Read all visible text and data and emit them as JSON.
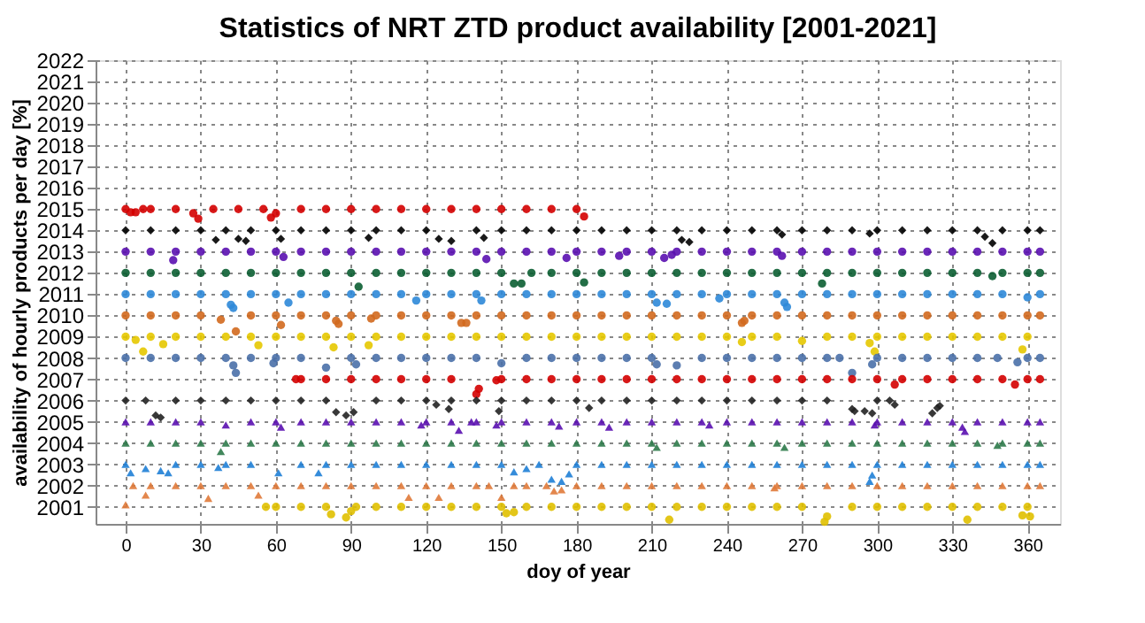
{
  "chart_data": {
    "type": "scatter",
    "title": "Statistics of NRT ZTD product availability [2001-2021]",
    "xlabel": "doy of year",
    "ylabel": "availability of hourly products per day [%]",
    "xlim": [
      -12,
      373
    ],
    "ylim": [
      2000.2,
      2022
    ],
    "xticks": [
      0,
      30,
      60,
      90,
      120,
      150,
      180,
      210,
      240,
      270,
      300,
      330,
      360
    ],
    "yticks": [
      2001,
      2002,
      2003,
      2004,
      2005,
      2006,
      2007,
      2008,
      2009,
      2010,
      2011,
      2012,
      2013,
      2014,
      2015,
      2016,
      2017,
      2018,
      2019,
      2020,
      2021,
      2022
    ],
    "grid": true,
    "series": [
      {
        "color": "#d40000",
        "marker": "circle",
        "x": [
          0,
          2,
          4,
          7,
          10,
          20,
          27,
          29,
          35,
          45,
          55,
          58,
          60,
          70,
          80,
          90,
          100,
          110,
          120,
          130,
          140,
          150,
          160,
          170,
          180,
          183
        ],
        "values": [
          2015,
          2014.85,
          2014.85,
          2015,
          2015,
          2015,
          2014.8,
          2014.55,
          2015,
          2015,
          2015,
          2014.6,
          2014.8,
          2015,
          2015,
          2015,
          2015,
          2015,
          2015,
          2015,
          2015,
          2015,
          2015,
          2015,
          2015,
          2014.65
        ]
      },
      {
        "color": "#000000",
        "marker": "diamond",
        "x": [
          0,
          10,
          20,
          30,
          36,
          40,
          45,
          48,
          50,
          60,
          62,
          70,
          80,
          90,
          97,
          100,
          110,
          120,
          125,
          130,
          140,
          143,
          150,
          160,
          170,
          180,
          190,
          200,
          210,
          220,
          222,
          225,
          230,
          240,
          250,
          260,
          262,
          270,
          280,
          290,
          297,
          300,
          310,
          320,
          330,
          340,
          343,
          346,
          350,
          360,
          365
        ],
        "values": [
          2014,
          2014,
          2014,
          2014,
          2013.55,
          2014,
          2013.6,
          2013.5,
          2014,
          2014,
          2013.6,
          2014,
          2014,
          2014,
          2013.65,
          2014,
          2014,
          2014,
          2013.6,
          2013.5,
          2014,
          2013.65,
          2014,
          2014,
          2014,
          2014,
          2014,
          2014,
          2014,
          2014,
          2013.55,
          2013.45,
          2014,
          2014,
          2014,
          2014,
          2013.8,
          2014,
          2014,
          2014,
          2013.85,
          2014,
          2014,
          2014,
          2014,
          2014,
          2013.7,
          2013.4,
          2014,
          2014,
          2014
        ]
      },
      {
        "color": "#5a0fb0",
        "marker": "circle",
        "x": [
          0,
          10,
          19,
          20,
          30,
          40,
          50,
          60,
          63,
          70,
          80,
          90,
          100,
          110,
          120,
          130,
          140,
          144,
          150,
          160,
          170,
          176,
          180,
          190,
          197,
          200,
          210,
          215,
          218,
          220,
          230,
          240,
          250,
          260,
          262,
          270,
          280,
          290,
          300,
          310,
          320,
          330,
          340,
          350,
          360,
          365
        ],
        "values": [
          2013,
          2013,
          2012.6,
          2013,
          2013,
          2013,
          2013,
          2013,
          2012.75,
          2013,
          2013,
          2013,
          2013,
          2013,
          2013,
          2013,
          2013,
          2012.65,
          2013,
          2013,
          2013,
          2012.7,
          2013,
          2013,
          2012.8,
          2013,
          2013,
          2012.7,
          2012.85,
          2013,
          2013,
          2013,
          2013,
          2013,
          2012.8,
          2013,
          2013,
          2013,
          2013,
          2013,
          2013,
          2013,
          2013,
          2013,
          2013,
          2013
        ]
      },
      {
        "color": "#0b5e32",
        "marker": "circle",
        "x": [
          0,
          10,
          20,
          30,
          40,
          50,
          60,
          70,
          80,
          90,
          93,
          100,
          110,
          120,
          130,
          140,
          150,
          155,
          158,
          162,
          170,
          180,
          183,
          190,
          200,
          210,
          220,
          230,
          240,
          250,
          260,
          270,
          278,
          280,
          290,
          300,
          310,
          320,
          330,
          340,
          346,
          350,
          360,
          365
        ],
        "values": [
          2012,
          2012,
          2012,
          2012,
          2012,
          2012,
          2012,
          2012,
          2012,
          2012,
          2011.35,
          2012,
          2012,
          2012,
          2012,
          2012,
          2012,
          2011.5,
          2011.5,
          2012,
          2012,
          2012,
          2011.55,
          2012,
          2012,
          2012,
          2012,
          2012,
          2012,
          2012,
          2012,
          2012,
          2011.5,
          2012,
          2012,
          2012,
          2012,
          2012,
          2012,
          2012,
          2011.85,
          2012,
          2012,
          2012
        ]
      },
      {
        "color": "#2e88d8",
        "marker": "circle",
        "x": [
          0,
          10,
          20,
          30,
          40,
          42,
          43,
          50,
          60,
          65,
          70,
          80,
          90,
          100,
          110,
          116,
          120,
          130,
          140,
          142,
          150,
          160,
          170,
          180,
          190,
          200,
          210,
          212,
          216,
          220,
          230,
          237,
          240,
          250,
          260,
          263,
          264,
          270,
          280,
          290,
          300,
          310,
          320,
          330,
          340,
          350,
          360,
          365
        ],
        "values": [
          2011,
          2011,
          2011,
          2011,
          2011,
          2010.5,
          2010.35,
          2011,
          2011,
          2010.6,
          2011,
          2011,
          2011,
          2011,
          2011,
          2010.7,
          2011,
          2011,
          2011,
          2010.7,
          2011,
          2011,
          2011,
          2011,
          2011,
          2011,
          2011,
          2010.6,
          2010.55,
          2011,
          2011,
          2010.8,
          2011,
          2011,
          2011,
          2010.6,
          2010.4,
          2011,
          2011,
          2011,
          2011,
          2011,
          2011,
          2011,
          2011,
          2011,
          2010.85,
          2011
        ]
      },
      {
        "color": "#d2691e",
        "marker": "circle",
        "x": [
          0,
          10,
          20,
          30,
          38,
          44,
          50,
          60,
          62,
          70,
          80,
          84,
          85,
          90,
          98,
          100,
          110,
          120,
          130,
          134,
          136,
          140,
          150,
          160,
          170,
          180,
          190,
          200,
          210,
          220,
          230,
          240,
          246,
          247,
          250,
          260,
          270,
          280,
          290,
          300,
          310,
          320,
          330,
          340,
          350,
          360,
          365
        ],
        "values": [
          2010,
          2010,
          2010,
          2010,
          2009.8,
          2009.25,
          2010,
          2010,
          2009.55,
          2010,
          2010,
          2009.75,
          2009.6,
          2010,
          2009.85,
          2010,
          2010,
          2010,
          2010,
          2009.65,
          2009.65,
          2010,
          2010,
          2010,
          2010,
          2010,
          2010,
          2010,
          2010,
          2010,
          2010,
          2010,
          2009.65,
          2009.75,
          2010,
          2010,
          2010,
          2010,
          2010,
          2010,
          2010,
          2010,
          2010,
          2010,
          2010,
          2010,
          2010
        ]
      },
      {
        "color": "#e6c800",
        "marker": "circle",
        "x": [
          0,
          4,
          7,
          10,
          15,
          20,
          30,
          40,
          50,
          53,
          60,
          70,
          80,
          83,
          90,
          97,
          100,
          110,
          120,
          130,
          140,
          150,
          160,
          170,
          180,
          190,
          200,
          210,
          220,
          230,
          240,
          246,
          250,
          260,
          270,
          280,
          290,
          297,
          299,
          300,
          310,
          320,
          330,
          340,
          350,
          358,
          360
        ],
        "values": [
          2009,
          2008.85,
          2008.3,
          2009,
          2008.65,
          2009,
          2009,
          2009,
          2009,
          2008.6,
          2009,
          2009,
          2009,
          2008.5,
          2009,
          2008.6,
          2009,
          2009,
          2009,
          2009,
          2009,
          2009,
          2009,
          2009,
          2009,
          2009,
          2009,
          2009,
          2009,
          2009,
          2009,
          2008.75,
          2009,
          2009,
          2008.8,
          2009,
          2009,
          2008.7,
          2008.3,
          2009,
          2009,
          2009,
          2009,
          2009,
          2009,
          2008.4,
          2009
        ]
      },
      {
        "color": "#4a70a8",
        "marker": "circle",
        "x": [
          0,
          10,
          20,
          30,
          40,
          43,
          44,
          50,
          59,
          60,
          70,
          80,
          90,
          92,
          100,
          110,
          120,
          130,
          140,
          150,
          160,
          170,
          180,
          190,
          200,
          210,
          212,
          220,
          230,
          240,
          250,
          260,
          270,
          280,
          285,
          290,
          298,
          300,
          310,
          320,
          330,
          340,
          348,
          356,
          360,
          365
        ],
        "values": [
          2008,
          2008,
          2008,
          2008,
          2008,
          2007.65,
          2007.3,
          2008,
          2007.75,
          2008,
          2008,
          2007.55,
          2008,
          2007.7,
          2008,
          2008,
          2008,
          2008,
          2008,
          2007.75,
          2008,
          2008,
          2008,
          2008,
          2008,
          2008,
          2007.7,
          2007.65,
          2008,
          2008,
          2008,
          2008,
          2008,
          2008,
          2008,
          2007.3,
          2007.7,
          2008,
          2008,
          2008,
          2008,
          2008,
          2008,
          2007.8,
          2008,
          2008
        ]
      },
      {
        "color": "#d40000",
        "marker": "circle",
        "x": [
          68,
          70,
          80,
          90,
          100,
          110,
          120,
          130,
          140,
          141,
          148,
          150,
          160,
          170,
          180,
          190,
          200,
          210,
          220,
          230,
          240,
          250,
          260,
          270,
          280,
          290,
          300,
          307,
          310,
          320,
          330,
          340,
          350,
          355,
          360,
          365
        ],
        "values": [
          2007,
          2007,
          2007,
          2007,
          2007,
          2007,
          2007,
          2007,
          2006.3,
          2006.55,
          2006.95,
          2007,
          2007,
          2007,
          2007,
          2007,
          2007,
          2007,
          2007,
          2007,
          2007,
          2007,
          2007,
          2007,
          2007,
          2007,
          2007,
          2006.75,
          2007,
          2007,
          2007,
          2007,
          2007,
          2006.75,
          2007,
          2007
        ]
      },
      {
        "color": "#222222",
        "marker": "diamond",
        "x": [
          0,
          8,
          12,
          14,
          20,
          30,
          40,
          50,
          60,
          70,
          80,
          84,
          88,
          91,
          100,
          110,
          120,
          124,
          129,
          130,
          140,
          149,
          150,
          160,
          170,
          180,
          185,
          190,
          200,
          210,
          220,
          230,
          240,
          250,
          260,
          270,
          280,
          290,
          291,
          295,
          298,
          300,
          305,
          307,
          322,
          324,
          325
        ],
        "values": [
          2006,
          2006,
          2005.3,
          2005.2,
          2006,
          2006,
          2006,
          2006,
          2006,
          2006,
          2006,
          2005.45,
          2005.3,
          2005.45,
          2006,
          2006,
          2006,
          2005.8,
          2005.6,
          2006,
          2006,
          2005.5,
          2006,
          2006,
          2006,
          2006,
          2005.65,
          2006,
          2006,
          2006,
          2006,
          2006,
          2006,
          2006,
          2006,
          2006,
          2006,
          2005.6,
          2005.5,
          2005.5,
          2005.4,
          2006,
          2006,
          2005.8,
          2005.4,
          2005.65,
          2005.75
        ]
      },
      {
        "color": "#5a0fb0",
        "marker": "triangle",
        "x": [
          0,
          10,
          20,
          30,
          40,
          50,
          60,
          62,
          70,
          80,
          90,
          100,
          110,
          118,
          120,
          130,
          133,
          138,
          140,
          148,
          150,
          160,
          170,
          173,
          180,
          190,
          193,
          200,
          210,
          220,
          230,
          233,
          240,
          250,
          260,
          270,
          280,
          290,
          299,
          300,
          310,
          320,
          330,
          334,
          335,
          340,
          350,
          360,
          365
        ],
        "values": [
          2005,
          2005,
          2005,
          2005,
          2004.85,
          2005,
          2005,
          2004.75,
          2005,
          2005,
          2005,
          2005,
          2005,
          2004.85,
          2005,
          2005,
          2004.6,
          2005,
          2005,
          2004.85,
          2005,
          2005,
          2005,
          2004.8,
          2005,
          2005,
          2004.75,
          2005,
          2005,
          2005,
          2005,
          2004.85,
          2005,
          2005,
          2005,
          2005,
          2005,
          2005,
          2004.85,
          2005,
          2005,
          2005,
          2005,
          2004.75,
          2004.55,
          2005,
          2005,
          2005,
          2005
        ]
      },
      {
        "color": "#2e7a4a",
        "marker": "triangle",
        "x": [
          0,
          10,
          20,
          30,
          38,
          40,
          50,
          60,
          70,
          80,
          90,
          100,
          110,
          120,
          130,
          140,
          150,
          160,
          170,
          180,
          190,
          200,
          210,
          212,
          220,
          230,
          240,
          250,
          260,
          263,
          270,
          280,
          290,
          300,
          310,
          320,
          330,
          340,
          348,
          350,
          360,
          365
        ],
        "values": [
          2004,
          2004,
          2004,
          2004,
          2003.6,
          2004,
          2004,
          2004,
          2004,
          2004,
          2004,
          2004,
          2004,
          2004,
          2004,
          2004,
          2004,
          2004,
          2004,
          2004,
          2004,
          2004,
          2004,
          2003.8,
          2004,
          2004,
          2004,
          2004,
          2004,
          2003.8,
          2004,
          2004,
          2004,
          2004,
          2004,
          2004,
          2004,
          2004,
          2003.9,
          2004,
          2004,
          2004
        ]
      },
      {
        "color": "#1f7fd6",
        "marker": "triangle",
        "x": [
          0,
          2,
          8,
          14,
          17,
          20,
          30,
          37,
          40,
          50,
          61,
          70,
          77,
          80,
          90,
          100,
          110,
          120,
          130,
          140,
          150,
          155,
          160,
          165,
          170,
          174,
          177,
          180,
          190,
          200,
          210,
          220,
          230,
          240,
          250,
          260,
          270,
          280,
          290,
          297,
          298,
          300,
          310,
          320,
          330,
          340,
          350,
          360,
          365
        ],
        "values": [
          2003,
          2002.6,
          2002.8,
          2002.7,
          2002.6,
          2003,
          2003,
          2002.85,
          2003,
          2003,
          2002.6,
          2003,
          2002.6,
          2003,
          2003,
          2003,
          2003,
          2003,
          2003,
          2003,
          2003,
          2002.65,
          2002.8,
          2003,
          2002.3,
          2002.2,
          2002.55,
          2003,
          2003,
          2003,
          2003,
          2003,
          2003,
          2003,
          2003,
          2003,
          2003,
          2003,
          2003,
          2002.2,
          2002.5,
          2003,
          2003,
          2003,
          2003,
          2003,
          2003,
          2003,
          2003
        ]
      },
      {
        "color": "#e07a3a",
        "marker": "triangle",
        "x": [
          0,
          3,
          8,
          10,
          20,
          30,
          33,
          40,
          50,
          53,
          60,
          70,
          80,
          90,
          100,
          110,
          113,
          120,
          125,
          130,
          140,
          145,
          150,
          155,
          160,
          168,
          171,
          174,
          180,
          190,
          200,
          210,
          220,
          230,
          240,
          250,
          259,
          260,
          270,
          280,
          290,
          300,
          310,
          320,
          330,
          340,
          350,
          360,
          365
        ],
        "values": [
          2001.1,
          2002,
          2001.55,
          2002,
          2002,
          2002,
          2001.4,
          2002,
          2002,
          2001.55,
          2002,
          2002,
          2002,
          2002,
          2002,
          2002,
          2001.45,
          2002,
          2001.45,
          2002,
          2002,
          2002,
          2001.45,
          2002,
          2002,
          2002,
          2001.75,
          2001.8,
          2002,
          2002,
          2002,
          2002,
          2002,
          2002,
          2002,
          2002,
          2001.9,
          2002,
          2002,
          2002,
          2002,
          2002,
          2002,
          2002,
          2002,
          2002,
          2002,
          2002,
          2002
        ]
      },
      {
        "color": "#e0c000",
        "marker": "circle",
        "x": [
          56,
          60,
          70,
          80,
          82,
          88,
          90,
          92,
          100,
          110,
          120,
          130,
          140,
          150,
          152,
          155,
          160,
          170,
          180,
          190,
          200,
          210,
          217,
          220,
          230,
          240,
          250,
          260,
          270,
          279,
          280,
          290,
          300,
          310,
          320,
          330,
          336,
          340,
          350,
          358,
          360,
          361
        ],
        "values": [
          2001,
          2001,
          2001,
          2001,
          2000.65,
          2000.5,
          2000.8,
          2001,
          2001,
          2001,
          2001,
          2001,
          2001,
          2001,
          2000.7,
          2000.75,
          2001,
          2001,
          2001,
          2001,
          2001,
          2001,
          2000.4,
          2001,
          2001,
          2001,
          2001,
          2001,
          2001,
          2000.3,
          2000.55,
          2001,
          2001,
          2001,
          2001,
          2001,
          2000.4,
          2001,
          2001,
          2000.6,
          2001,
          2000.55
        ]
      }
    ]
  }
}
